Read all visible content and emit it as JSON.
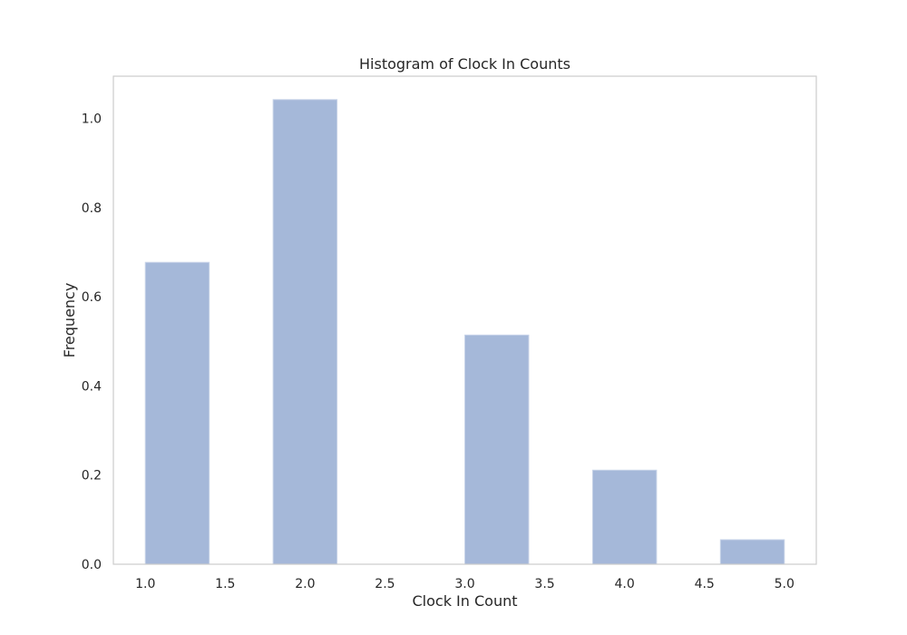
{
  "chart_data": {
    "type": "bar",
    "title": "Histogram of Clock In Counts",
    "xlabel": "Clock In Count",
    "ylabel": "Frequency",
    "xlim": [
      0.8,
      5.2
    ],
    "ylim": [
      0,
      1.0945
    ],
    "grid": false,
    "bar_color": "#a5b8d9",
    "bar_edge_color": "#c7d3e8",
    "frame_color": "#cccccc",
    "x_ticks": [
      1.0,
      1.5,
      2.0,
      2.5,
      3.0,
      3.5,
      4.0,
      4.5,
      5.0
    ],
    "x_tick_labels": [
      "1.0",
      "1.5",
      "2.0",
      "2.5",
      "3.0",
      "3.5",
      "4.0",
      "4.5",
      "5.0"
    ],
    "y_ticks": [
      0.0,
      0.2,
      0.4,
      0.6,
      0.8,
      1.0
    ],
    "y_tick_labels": [
      "0.0",
      "0.2",
      "0.4",
      "0.6",
      "0.8",
      "1.0"
    ],
    "bins": [
      {
        "x0": 1.0,
        "x1": 1.4,
        "value": 0.677
      },
      {
        "x0": 1.4,
        "x1": 1.8,
        "value": 0.0
      },
      {
        "x0": 1.8,
        "x1": 2.2,
        "value": 1.042
      },
      {
        "x0": 2.2,
        "x1": 2.6,
        "value": 0.0
      },
      {
        "x0": 2.6,
        "x1": 3.0,
        "value": 0.0
      },
      {
        "x0": 3.0,
        "x1": 3.4,
        "value": 0.514
      },
      {
        "x0": 3.4,
        "x1": 3.8,
        "value": 0.0
      },
      {
        "x0": 3.8,
        "x1": 4.2,
        "value": 0.211
      },
      {
        "x0": 4.2,
        "x1": 4.6,
        "value": 0.0
      },
      {
        "x0": 4.6,
        "x1": 5.0,
        "value": 0.055
      }
    ]
  }
}
